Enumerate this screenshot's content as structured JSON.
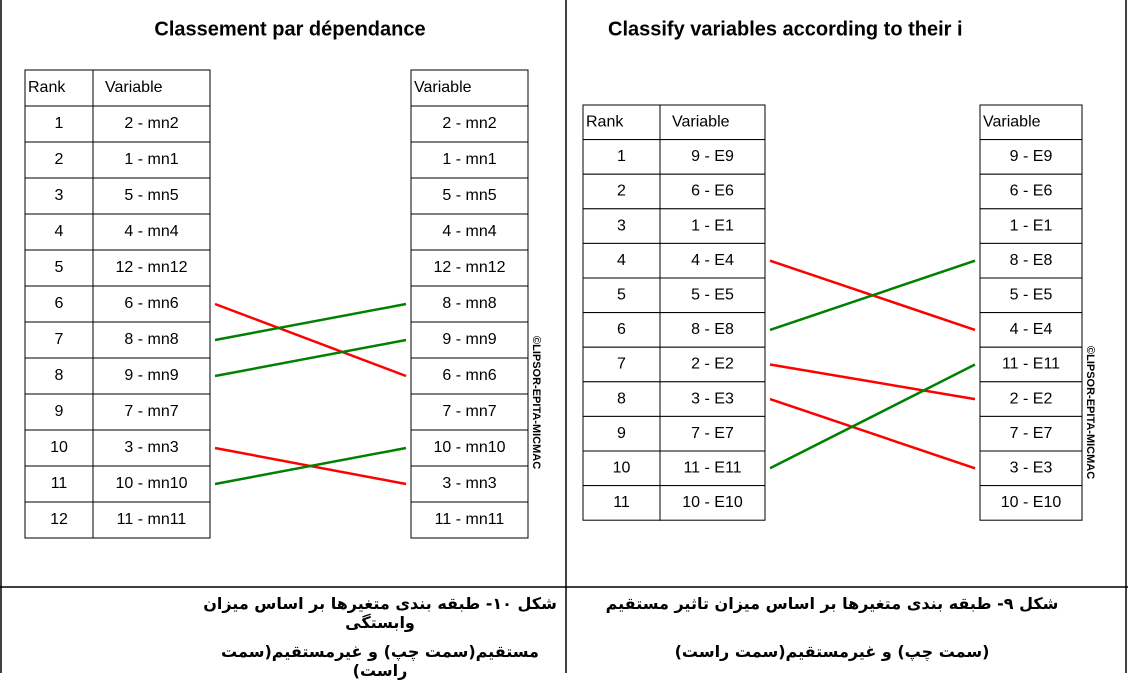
{
  "left_panel": {
    "title": "Classement par dépendance",
    "headers": [
      "Rank",
      "Variable"
    ],
    "ranks": [
      1,
      2,
      3,
      4,
      5,
      6,
      7,
      8,
      9,
      10,
      11,
      12
    ],
    "left_variables": [
      "2 - mn2",
      "1 - mn1",
      "5 - mn5",
      "4 - mn4",
      "12 - mn12",
      "6 - mn6",
      "8 - mn8",
      "9 - mn9",
      "7 - mn7",
      "3 - mn3",
      "10 - mn10",
      "11 - mn11"
    ],
    "right_header": "Variable",
    "right_variables": [
      "2 - mn2",
      "1 - mn1",
      "5 - mn5",
      "4 - mn4",
      "12 - mn12",
      "8 - mn8",
      "9 - mn9",
      "6 - mn6",
      "7 - mn7",
      "10 - mn10",
      "3 - mn3",
      "11 - mn11"
    ],
    "watermark": "©LIPSOR-EPITA-MICMAC"
  },
  "right_panel": {
    "title": "Classify variables according to their i",
    "headers": [
      "Rank",
      "Variable"
    ],
    "ranks": [
      1,
      2,
      3,
      4,
      5,
      6,
      7,
      8,
      9,
      10,
      11
    ],
    "left_variables": [
      "9 - E9",
      "6 - E6",
      "1 - E1",
      "4 - E4",
      "5 - E5",
      "8 - E8",
      "2 - E2",
      "3 - E3",
      "7 - E7",
      "11 - E11",
      "10 - E10"
    ],
    "right_header": "Variable",
    "right_variables": [
      "9 - E9",
      "6 - E6",
      "1 - E1",
      "8 - E8",
      "5 - E5",
      "4 - E4",
      "11 - E11",
      "2 - E2",
      "7 - E7",
      "3 - E3",
      "10 - E10"
    ],
    "watermark": "©LIPSOR-EPITA-MICMAC"
  },
  "captions": {
    "left": [
      "شکل ۱۰- طبقه بندی متغیرها بر اساس میزان وابستگی",
      "مستقیم(سمت چپ) و غیرمستقیم(سمت راست)"
    ],
    "right": [
      "شکل ۹- طبقه بندی متغیرها بر اساس میزان تاثیر مستقیم",
      "(سمت چپ) و غیرمستقیم(سمت راست)"
    ]
  }
}
